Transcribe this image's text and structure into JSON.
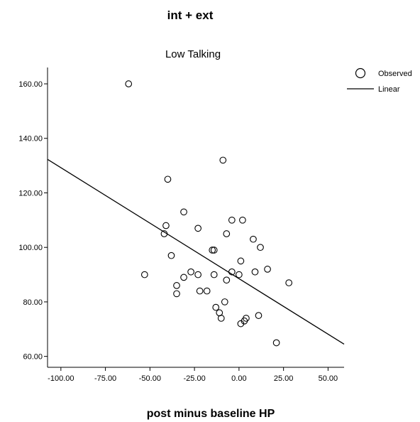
{
  "chart_data": {
    "type": "scatter",
    "title": "int + ext",
    "subtitle": "Low Talking",
    "xlabel": "post minus baseline HP",
    "ylabel": "",
    "xlim": [
      -107.5,
      59
    ],
    "ylim": [
      56,
      166
    ],
    "x_ticks": [
      -100,
      -75,
      -50,
      -25,
      0,
      25,
      50
    ],
    "x_tick_labels": [
      "-100.00",
      "-75.00",
      "-50.00",
      "-25.00",
      "0.00",
      "25.00",
      "50.00"
    ],
    "y_ticks": [
      60,
      80,
      100,
      120,
      140,
      160
    ],
    "y_tick_labels": [
      "60.00",
      "80.00",
      "100.00",
      "120.00",
      "140.00",
      "160.00"
    ],
    "grid": false,
    "legend_position": "top-right",
    "series": [
      {
        "name": "Observed",
        "type": "scatter",
        "points": [
          {
            "x": -62,
            "y": 160
          },
          {
            "x": -9,
            "y": 132
          },
          {
            "x": -40,
            "y": 125
          },
          {
            "x": -31,
            "y": 113
          },
          {
            "x": -4,
            "y": 110
          },
          {
            "x": 2,
            "y": 110
          },
          {
            "x": -41,
            "y": 108
          },
          {
            "x": -23,
            "y": 107
          },
          {
            "x": -42,
            "y": 105
          },
          {
            "x": -7,
            "y": 105
          },
          {
            "x": 8,
            "y": 103
          },
          {
            "x": -15,
            "y": 99
          },
          {
            "x": -14,
            "y": 99
          },
          {
            "x": 12,
            "y": 100
          },
          {
            "x": -38,
            "y": 97
          },
          {
            "x": 1,
            "y": 95
          },
          {
            "x": 16,
            "y": 92
          },
          {
            "x": -27,
            "y": 91
          },
          {
            "x": -4,
            "y": 91
          },
          {
            "x": 9,
            "y": 91
          },
          {
            "x": -53,
            "y": 90
          },
          {
            "x": -23,
            "y": 90
          },
          {
            "x": -14,
            "y": 90
          },
          {
            "x": 0,
            "y": 90
          },
          {
            "x": -31,
            "y": 89
          },
          {
            "x": -7,
            "y": 88
          },
          {
            "x": 28,
            "y": 87
          },
          {
            "x": -35,
            "y": 86
          },
          {
            "x": -22,
            "y": 84
          },
          {
            "x": -18,
            "y": 84
          },
          {
            "x": -35,
            "y": 83
          },
          {
            "x": -8,
            "y": 80
          },
          {
            "x": -13,
            "y": 78
          },
          {
            "x": -11,
            "y": 76
          },
          {
            "x": 11,
            "y": 75
          },
          {
            "x": -10,
            "y": 74
          },
          {
            "x": 4,
            "y": 74
          },
          {
            "x": 3,
            "y": 73
          },
          {
            "x": 1,
            "y": 72
          },
          {
            "x": 21,
            "y": 65
          }
        ]
      },
      {
        "name": "Linear",
        "type": "line",
        "points": [
          {
            "x": -107.5,
            "y": 132.3
          },
          {
            "x": 59,
            "y": 64.5
          }
        ]
      }
    ]
  }
}
